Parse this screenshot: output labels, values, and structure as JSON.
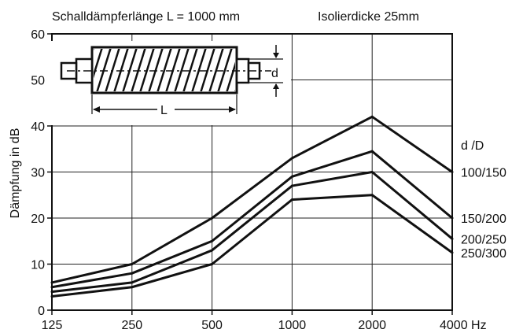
{
  "title_left": "Schalldämpferlänge L = 1000 mm",
  "title_right": "Isolierdicke 25mm",
  "inset": {
    "d_label": "d",
    "l_label": "L"
  },
  "chart_data": {
    "type": "line",
    "ylabel": "Dämpfung in dB",
    "ylim": [
      0,
      60
    ],
    "yticks": [
      "0",
      "10",
      "20",
      "30",
      "40",
      "50",
      "60"
    ],
    "x": [
      "125",
      "250",
      "500",
      "1000",
      "2000",
      "4000 Hz"
    ],
    "grid": true,
    "legend_title": "d /D",
    "series": [
      {
        "name": "100/150",
        "values": [
          6,
          10,
          20,
          33,
          42,
          30
        ]
      },
      {
        "name": "150/200",
        "values": [
          5,
          8,
          15,
          29,
          34.5,
          20
        ]
      },
      {
        "name": "200/250",
        "values": [
          4,
          6,
          13,
          27,
          30,
          15.5
        ]
      },
      {
        "name": "250/300",
        "values": [
          3,
          5,
          10,
          24,
          25,
          12.5
        ]
      }
    ]
  }
}
